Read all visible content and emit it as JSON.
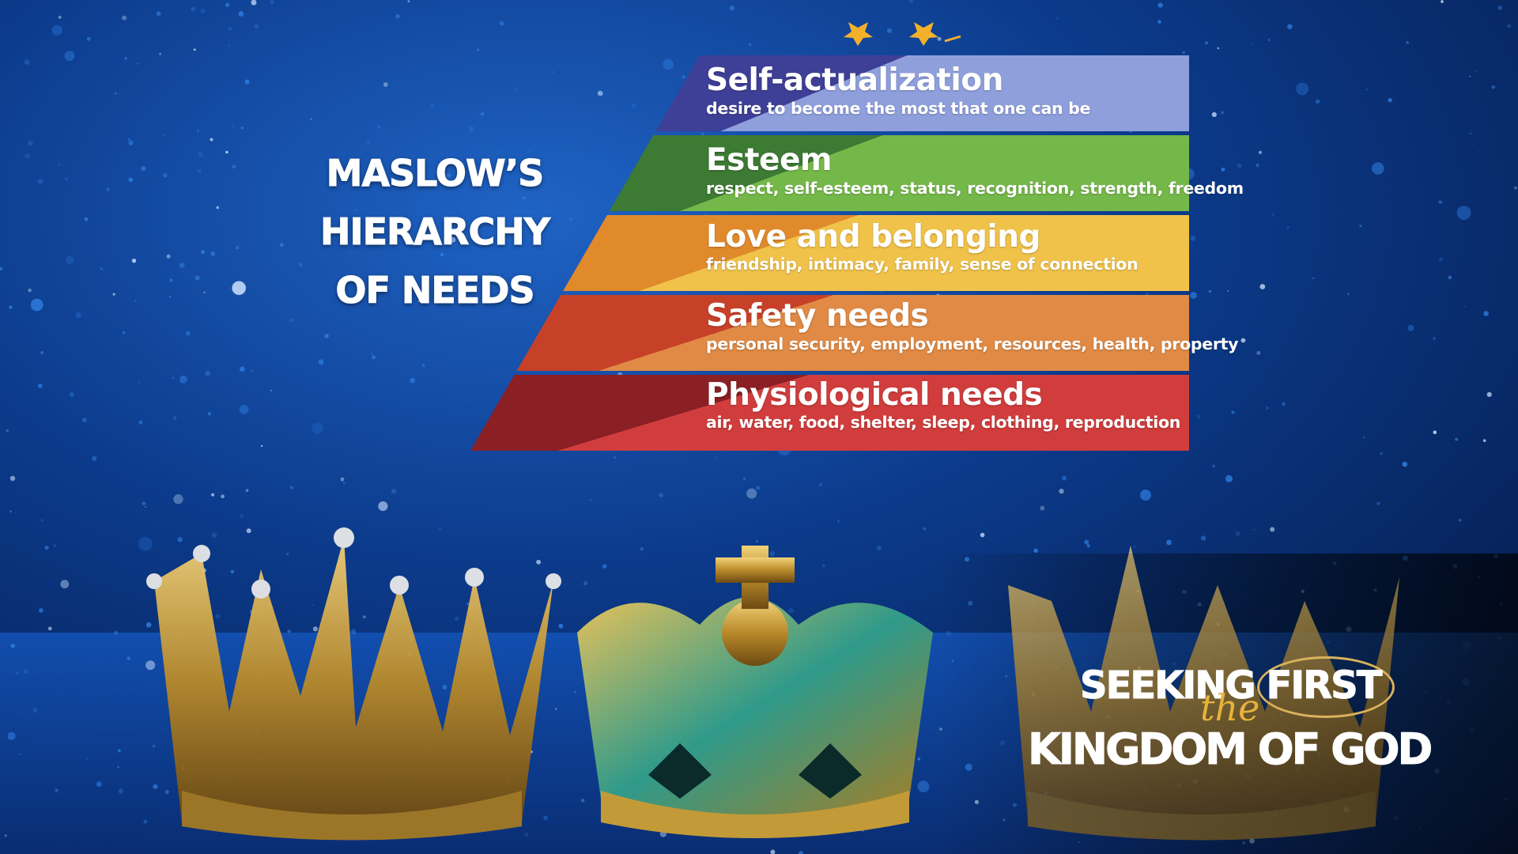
{
  "side_title": {
    "line1": "MASLOW’S",
    "line2": "HIERARCHY",
    "line3": "OF NEEDS"
  },
  "pyramid": {
    "tiers": [
      {
        "name": "Self-actualization",
        "description": "desire to become the most that one can be",
        "color_dark": "#3e3f96",
        "color_light": "#8f9fdc"
      },
      {
        "name": "Esteem",
        "description": "respect, self-esteem, status, recognition, strength, freedom",
        "color_dark": "#3d7a33",
        "color_light": "#75b84a"
      },
      {
        "name": "Love and belonging",
        "description": "friendship, intimacy, family, sense of connection",
        "color_dark": "#e08a2c",
        "color_light": "#f0c24a"
      },
      {
        "name": "Safety needs",
        "description": "personal security, employment, resources, health, property",
        "color_dark": "#c74128",
        "color_light": "#e08a45"
      },
      {
        "name": "Physiological needs",
        "description": "air, water, food, shelter, sleep, clothing, reproduction",
        "color_dark": "#8a1f24",
        "color_light": "#d13d3d"
      }
    ]
  },
  "brand": {
    "seeking": "SEEKING",
    "first": "FIRST",
    "the": "the",
    "kingdom": "KINGDOM OF GOD",
    "accent_color": "#e8b23a"
  },
  "background": {
    "base_color": "#06245e",
    "glitter_color": "#2f7ee0"
  }
}
